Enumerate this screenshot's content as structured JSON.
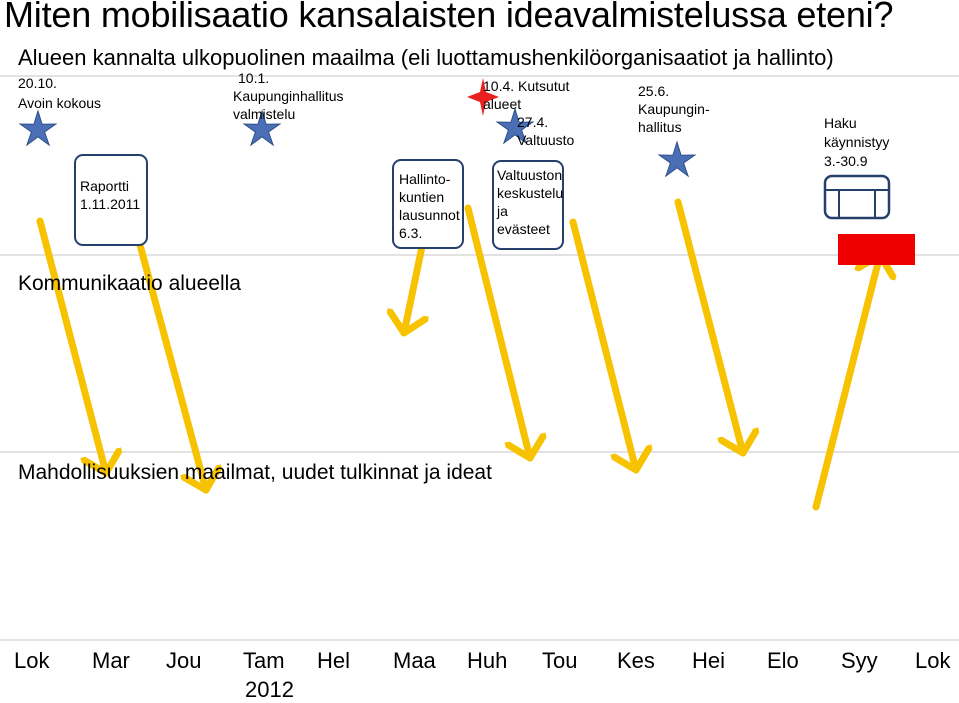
{
  "title": "Miten mobilisaatio kansalaisten ideavalmistelussa eteni?",
  "subtitle": "Alueen kannalta ulkopuolinen maailma (eli luottamushenkilöorganisaatiot ja hallinto)",
  "events": {
    "e1_date": "20.10.",
    "e1_label": "Avoin kokous",
    "e2_date": "10.1.",
    "e2_label1": "Kaupunginhallitus",
    "e2_label2": "valmistelu",
    "e3_line1": "10.4. Kutsutut",
    "e3_line2": "alueet",
    "e4_date": "27.4.",
    "e4_label": "Valtuusto",
    "e5_date": "25.6.",
    "e5_label1": "Kaupungin-",
    "e5_label2": "hallitus",
    "e6_label1": "Haku",
    "e6_label2": "käynnistyy",
    "e6_label3": "3.-30.9"
  },
  "boxes": {
    "b1_line1": "Raportti",
    "b1_line2": "1.11.2011",
    "b2_line1": "Hallinto-",
    "b2_line2": "kuntien",
    "b2_line3": "lausunnot",
    "b2_line4": "6.3.",
    "b3_line1": "Valtuuston",
    "b3_line2": "keskustelu",
    "b3_line3": "ja",
    "b3_line4": "evästeet"
  },
  "bands": {
    "communication": "Kommunikaatio alueella",
    "possibilities": "Mahdollisuuksien maailmat, uudet tulkinnat ja ideat"
  },
  "timeline": {
    "months": [
      "Lok",
      "Mar",
      "Jou",
      "Tam",
      "Hel",
      "Maa",
      "Huh",
      "Tou",
      "Kes",
      "Hei",
      "Elo",
      "Syy",
      "Lok"
    ],
    "year": "2012"
  },
  "colors": {
    "arrow": "#f7c300",
    "star": "#4a6fb5",
    "star_red": "#e8201e",
    "box_border": "#24406b",
    "red_block": "#ee0000",
    "rule": "#d9d9d9"
  }
}
